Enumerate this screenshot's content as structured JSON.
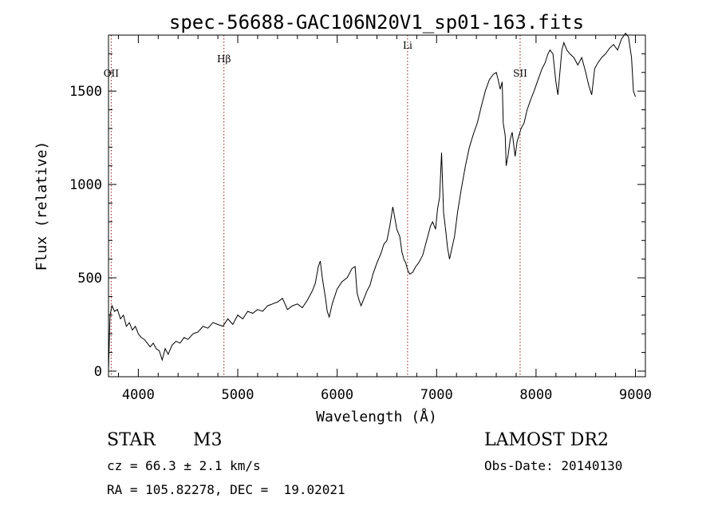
{
  "chart_data": {
    "type": "line",
    "title": "spec-56688-GAC106N20V1_sp01-163.fits",
    "xlabel": "Wavelength (Å)",
    "ylabel": "Flux (relative)",
    "xlim": [
      3700,
      9100
    ],
    "ylim": [
      -30,
      1800
    ],
    "xticks": [
      4000,
      5000,
      6000,
      7000,
      8000,
      9000
    ],
    "yticks": [
      0,
      500,
      1000,
      1500
    ],
    "grid": false,
    "series": [
      {
        "color": "#000000",
        "points": [
          [
            3700,
            0
          ],
          [
            3715,
            300
          ],
          [
            3735,
            350
          ],
          [
            3760,
            320
          ],
          [
            3790,
            330
          ],
          [
            3820,
            280
          ],
          [
            3850,
            300
          ],
          [
            3880,
            240
          ],
          [
            3910,
            260
          ],
          [
            3940,
            220
          ],
          [
            3970,
            240
          ],
          [
            4000,
            200
          ],
          [
            4030,
            180
          ],
          [
            4060,
            170
          ],
          [
            4090,
            150
          ],
          [
            4120,
            130
          ],
          [
            4150,
            150
          ],
          [
            4180,
            120
          ],
          [
            4210,
            110
          ],
          [
            4240,
            60
          ],
          [
            4270,
            120
          ],
          [
            4300,
            90
          ],
          [
            4340,
            140
          ],
          [
            4380,
            160
          ],
          [
            4420,
            150
          ],
          [
            4460,
            180
          ],
          [
            4500,
            170
          ],
          [
            4550,
            200
          ],
          [
            4600,
            210
          ],
          [
            4650,
            240
          ],
          [
            4700,
            230
          ],
          [
            4750,
            260
          ],
          [
            4800,
            250
          ],
          [
            4850,
            240
          ],
          [
            4900,
            280
          ],
          [
            4950,
            250
          ],
          [
            5000,
            300
          ],
          [
            5050,
            280
          ],
          [
            5100,
            320
          ],
          [
            5150,
            310
          ],
          [
            5200,
            330
          ],
          [
            5250,
            320
          ],
          [
            5300,
            350
          ],
          [
            5350,
            360
          ],
          [
            5400,
            370
          ],
          [
            5450,
            390
          ],
          [
            5500,
            330
          ],
          [
            5550,
            350
          ],
          [
            5600,
            360
          ],
          [
            5650,
            340
          ],
          [
            5700,
            380
          ],
          [
            5750,
            430
          ],
          [
            5780,
            470
          ],
          [
            5810,
            560
          ],
          [
            5830,
            590
          ],
          [
            5850,
            500
          ],
          [
            5880,
            400
          ],
          [
            5900,
            320
          ],
          [
            5920,
            290
          ],
          [
            5950,
            360
          ],
          [
            6000,
            440
          ],
          [
            6050,
            480
          ],
          [
            6100,
            500
          ],
          [
            6150,
            550
          ],
          [
            6180,
            560
          ],
          [
            6200,
            420
          ],
          [
            6220,
            380
          ],
          [
            6240,
            350
          ],
          [
            6270,
            390
          ],
          [
            6300,
            430
          ],
          [
            6330,
            460
          ],
          [
            6360,
            520
          ],
          [
            6400,
            580
          ],
          [
            6440,
            630
          ],
          [
            6470,
            680
          ],
          [
            6500,
            700
          ],
          [
            6530,
            780
          ],
          [
            6560,
            880
          ],
          [
            6580,
            820
          ],
          [
            6600,
            760
          ],
          [
            6630,
            720
          ],
          [
            6650,
            640
          ],
          [
            6670,
            600
          ],
          [
            6690,
            580
          ],
          [
            6710,
            540
          ],
          [
            6730,
            520
          ],
          [
            6760,
            530
          ],
          [
            6790,
            560
          ],
          [
            6820,
            580
          ],
          [
            6860,
            620
          ],
          [
            6900,
            700
          ],
          [
            6940,
            780
          ],
          [
            6960,
            800
          ],
          [
            6990,
            760
          ],
          [
            7010,
            870
          ],
          [
            7030,
            930
          ],
          [
            7050,
            1170
          ],
          [
            7070,
            850
          ],
          [
            7090,
            760
          ],
          [
            7110,
            660
          ],
          [
            7130,
            600
          ],
          [
            7150,
            650
          ],
          [
            7180,
            720
          ],
          [
            7210,
            850
          ],
          [
            7250,
            980
          ],
          [
            7290,
            1100
          ],
          [
            7330,
            1200
          ],
          [
            7370,
            1270
          ],
          [
            7410,
            1330
          ],
          [
            7450,
            1420
          ],
          [
            7490,
            1500
          ],
          [
            7530,
            1560
          ],
          [
            7570,
            1590
          ],
          [
            7600,
            1600
          ],
          [
            7620,
            1560
          ],
          [
            7640,
            1510
          ],
          [
            7660,
            1550
          ],
          [
            7670,
            1330
          ],
          [
            7690,
            1260
          ],
          [
            7700,
            1100
          ],
          [
            7720,
            1160
          ],
          [
            7740,
            1240
          ],
          [
            7760,
            1280
          ],
          [
            7790,
            1150
          ],
          [
            7810,
            1230
          ],
          [
            7850,
            1300
          ],
          [
            7880,
            1330
          ],
          [
            7910,
            1400
          ],
          [
            7950,
            1460
          ],
          [
            7980,
            1500
          ],
          [
            8020,
            1560
          ],
          [
            8060,
            1620
          ],
          [
            8090,
            1650
          ],
          [
            8120,
            1700
          ],
          [
            8140,
            1720
          ],
          [
            8170,
            1700
          ],
          [
            8200,
            1550
          ],
          [
            8220,
            1480
          ],
          [
            8240,
            1600
          ],
          [
            8260,
            1720
          ],
          [
            8280,
            1760
          ],
          [
            8310,
            1720
          ],
          [
            8340,
            1700
          ],
          [
            8380,
            1680
          ],
          [
            8420,
            1640
          ],
          [
            8460,
            1680
          ],
          [
            8500,
            1600
          ],
          [
            8530,
            1530
          ],
          [
            8560,
            1480
          ],
          [
            8590,
            1620
          ],
          [
            8620,
            1650
          ],
          [
            8660,
            1680
          ],
          [
            8700,
            1700
          ],
          [
            8740,
            1730
          ],
          [
            8780,
            1750
          ],
          [
            8820,
            1720
          ],
          [
            8860,
            1780
          ],
          [
            8900,
            1810
          ],
          [
            8930,
            1790
          ],
          [
            8960,
            1680
          ],
          [
            8980,
            1500
          ],
          [
            9000,
            1470
          ]
        ]
      }
    ],
    "lines": [
      {
        "label": "OII",
        "x": 3727
      },
      {
        "label": "Hβ",
        "x": 4861
      },
      {
        "label": "Li",
        "x": 6708
      },
      {
        "label": "SII",
        "x": 7840
      }
    ],
    "line_color": "#8b1a1a"
  },
  "info": {
    "object_class": "STAR",
    "subclass": "M3",
    "cz": "cz = 66.3 ± 2.1 km/s",
    "coords": "RA = 105.82278, DEC =  19.02021",
    "survey": "LAMOST DR2",
    "obs_date": "Obs-Date: 20140130"
  }
}
